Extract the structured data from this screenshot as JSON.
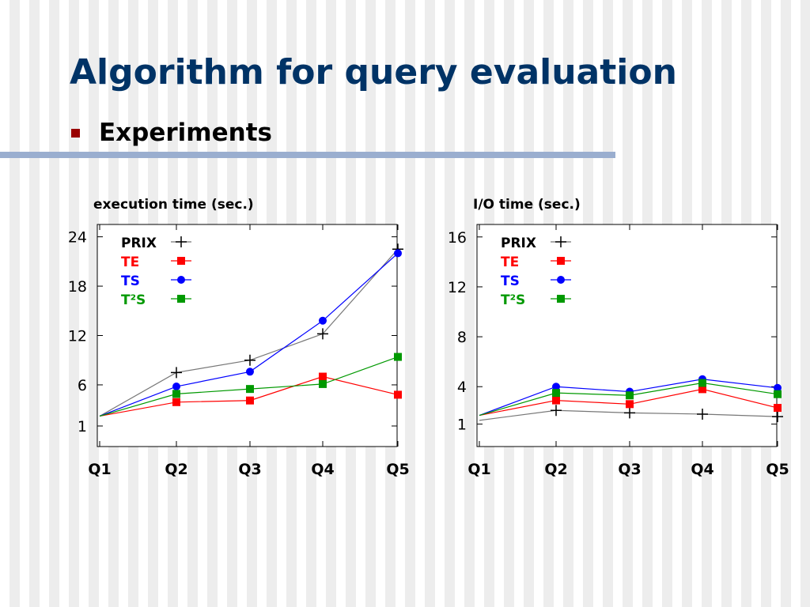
{
  "slide": {
    "title": "Algorithm for query evaluation",
    "bullet": "Experiments"
  },
  "colors": {
    "title": "#003366",
    "bullet": "#990000",
    "divider": "#9aaecf",
    "PRIX": "#000000",
    "TE": "#ff0000",
    "TS": "#0000ff",
    "T2S": "#009900"
  },
  "chart_data": [
    {
      "type": "line",
      "title": "execution time (sec.)",
      "categories": [
        "Q1",
        "Q2",
        "Q3",
        "Q4",
        "Q5"
      ],
      "yticks": [
        1,
        6,
        12,
        18,
        24
      ],
      "ylim": [
        -1.5,
        25.5
      ],
      "grid": false,
      "legend_position": "top-left",
      "series": [
        {
          "name": "PRIX",
          "marker": "plus",
          "color": "#000000",
          "values": [
            2.2,
            7.5,
            9.0,
            12.2,
            22.5
          ]
        },
        {
          "name": "TE",
          "marker": "square",
          "color": "#ff0000",
          "values": [
            2.2,
            3.9,
            4.1,
            7.0,
            4.8
          ]
        },
        {
          "name": "TS",
          "marker": "circle",
          "color": "#0000ff",
          "values": [
            2.2,
            5.8,
            7.6,
            13.8,
            22.0
          ]
        },
        {
          "name": "T²S",
          "marker": "square",
          "color": "#009900",
          "values": [
            2.2,
            4.9,
            5.5,
            6.1,
            9.4
          ]
        }
      ]
    },
    {
      "type": "line",
      "title": "I/O time (sec.)",
      "categories": [
        "Q1",
        "Q2",
        "Q3",
        "Q4",
        "Q5"
      ],
      "yticks": [
        1,
        4,
        8,
        12,
        16
      ],
      "ylim": [
        -0.8,
        17
      ],
      "grid": false,
      "legend_position": "top-left",
      "series": [
        {
          "name": "PRIX",
          "marker": "plus",
          "color": "#000000",
          "values": [
            1.3,
            2.1,
            1.9,
            1.8,
            1.6
          ]
        },
        {
          "name": "TE",
          "marker": "square",
          "color": "#ff0000",
          "values": [
            1.7,
            2.9,
            2.6,
            3.8,
            2.3
          ]
        },
        {
          "name": "TS",
          "marker": "circle",
          "color": "#0000ff",
          "values": [
            1.7,
            4.0,
            3.6,
            4.6,
            3.9
          ]
        },
        {
          "name": "T²S",
          "marker": "square",
          "color": "#009900",
          "values": [
            1.7,
            3.5,
            3.3,
            4.3,
            3.4
          ]
        }
      ]
    }
  ]
}
